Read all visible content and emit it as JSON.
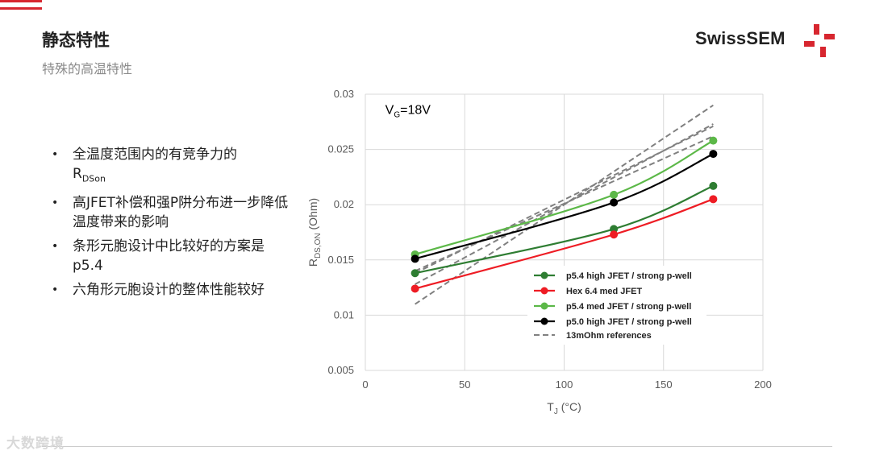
{
  "header": {
    "title": "静态特性",
    "subtitle": "特殊的高温特性",
    "brand": "SwissSEM",
    "accent_color": "#d7262f"
  },
  "bullets": [
    {
      "text": "全温度范围内的有竞争力的",
      "sub_main": "R",
      "sub": "DSon"
    },
    {
      "text": "高JFET补偿和强P阱分布进一步降低温度带来的影响"
    },
    {
      "text": "条形元胞设计中比较好的方案是p5.4"
    },
    {
      "text": "六角形元胞设计的整体性能较好"
    }
  ],
  "watermark": "大数跨境",
  "chart_data": {
    "type": "line",
    "annotation": {
      "main": "V",
      "sub": "G",
      "rest": "=18V"
    },
    "xlabel": {
      "main": "T",
      "sub": "J",
      "rest": " (°C)"
    },
    "ylabel": {
      "main": "R",
      "sub": "DS,ON",
      "rest": " (Ohm)"
    },
    "xlim": [
      0,
      200
    ],
    "ylim": [
      0.005,
      0.03
    ],
    "xticks": [
      0,
      50,
      100,
      150,
      200
    ],
    "yticks": [
      0.005,
      0.01,
      0.015,
      0.02,
      0.025,
      0.03
    ],
    "xtick_labels": [
      "0",
      "50",
      "100",
      "150",
      "200"
    ],
    "ytick_labels": [
      "0.005",
      "0.01",
      "0.015",
      "0.02",
      "0.025",
      "0.03"
    ],
    "grid": true,
    "legend_position": "bottom-right",
    "series": [
      {
        "name": "p5.4 high JFET / strong p-well",
        "color": "#2e7d32",
        "x": [
          25,
          125,
          175
        ],
        "y": [
          0.0138,
          0.0178,
          0.0217
        ]
      },
      {
        "name": "Hex 6.4 med JFET",
        "color": "#ee1c24",
        "x": [
          25,
          125,
          175
        ],
        "y": [
          0.0124,
          0.0173,
          0.0205
        ]
      },
      {
        "name": "p5.4 med JFET / strong p-well",
        "color": "#5cb848",
        "x": [
          25,
          125,
          175
        ],
        "y": [
          0.0155,
          0.0209,
          0.0258
        ]
      },
      {
        "name": "p5.0 high JFET / strong p-well",
        "color": "#000000",
        "x": [
          25,
          125,
          175
        ],
        "y": [
          0.0151,
          0.0202,
          0.0246
        ]
      }
    ],
    "reference": {
      "name": "13mOhm references",
      "color": "#808080",
      "lines": [
        {
          "x": [
            25,
            175
          ],
          "y": [
            0.011,
            0.029
          ]
        },
        {
          "x": [
            25,
            175
          ],
          "y": [
            0.0128,
            0.0273
          ]
        },
        {
          "x": [
            25,
            175
          ],
          "y": [
            0.0138,
            0.0271
          ]
        },
        {
          "x": [
            25,
            175
          ],
          "y": [
            0.014,
            0.0262
          ]
        }
      ]
    }
  }
}
